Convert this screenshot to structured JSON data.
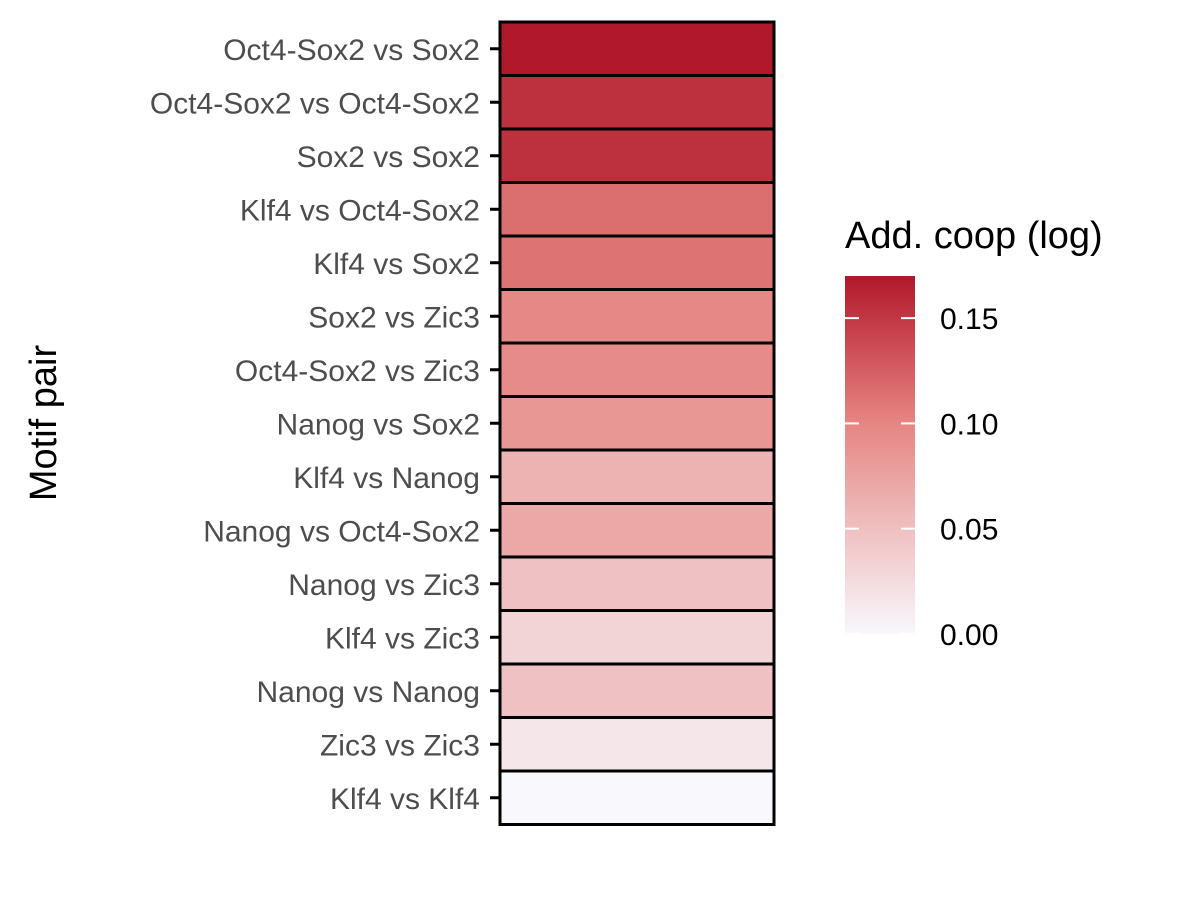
{
  "chart_data": {
    "type": "heatmap",
    "ylabel": "Motif pair",
    "xlabel": "",
    "categories": [
      "Oct4-Sox2 vs Sox2",
      "Oct4-Sox2 vs Oct4-Sox2",
      "Sox2 vs Sox2",
      "Klf4 vs Oct4-Sox2",
      "Klf4 vs Sox2",
      "Sox2 vs Zic3",
      "Oct4-Sox2 vs Zic3",
      "Nanog vs Sox2",
      "Klf4 vs Nanog",
      "Nanog vs Oct4-Sox2",
      "Nanog vs Zic3",
      "Klf4 vs Zic3",
      "Nanog vs Nanog",
      "Zic3 vs Zic3",
      "Klf4 vs Klf4"
    ],
    "values": [
      0.17,
      0.155,
      0.155,
      0.115,
      0.112,
      0.098,
      0.095,
      0.085,
      0.06,
      0.07,
      0.048,
      0.032,
      0.048,
      0.016,
      0.0
    ],
    "legend": {
      "title": "Add. coop (log)",
      "ticks": [
        0.15,
        0.1,
        0.05,
        0.0
      ],
      "tick_labels": [
        "0.15",
        "0.10",
        "0.05",
        "0.00"
      ],
      "range": [
        0,
        0.17
      ],
      "low_color": "#f8f8fd",
      "high_color": "#b2182b",
      "placement": "right"
    },
    "grid": false
  }
}
